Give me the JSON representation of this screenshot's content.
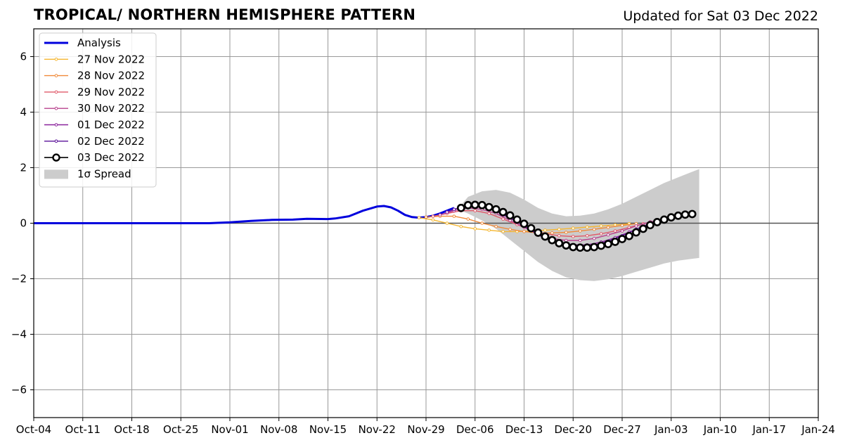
{
  "title": "TROPICAL/ NORTHERN HEMISPHERE PATTERN",
  "updated": "Updated for Sat 03 Dec 2022",
  "colors": {
    "analysis": "#0000dd",
    "spread": "#cccccc",
    "grid": "#999999",
    "zero": "#555555",
    "forecasts": [
      "#f5b731",
      "#f08a3a",
      "#e05a6a",
      "#b8428e",
      "#8a229c",
      "#5a1098",
      "#000000"
    ]
  },
  "chart_data": {
    "type": "line",
    "title": "TROPICAL/ NORTHERN HEMISPHERE PATTERN",
    "xlabel": "",
    "ylabel": "",
    "x_unit": "date",
    "xlim": [
      "2022-10-04",
      "2023-01-24"
    ],
    "ylim": [
      -7,
      7
    ],
    "grid": true,
    "legend_position": "top-left",
    "x_ticks": [
      "Oct-04",
      "Oct-11",
      "Oct-18",
      "Oct-25",
      "Nov-01",
      "Nov-08",
      "Nov-15",
      "Nov-22",
      "Nov-29",
      "Dec-06",
      "Dec-13",
      "Dec-20",
      "Dec-27",
      "Jan-03",
      "Jan-10",
      "Jan-17",
      "Jan-24"
    ],
    "x_tick_dates": [
      "2022-10-04",
      "2022-10-11",
      "2022-10-18",
      "2022-10-25",
      "2022-11-01",
      "2022-11-08",
      "2022-11-15",
      "2022-11-22",
      "2022-11-29",
      "2022-12-06",
      "2022-12-13",
      "2022-12-20",
      "2022-12-27",
      "2023-01-03",
      "2023-01-10",
      "2023-01-17",
      "2023-01-24"
    ],
    "y_ticks": [
      6,
      4,
      2,
      0,
      -2,
      -4,
      -6
    ],
    "y_tick_labels": [
      "6",
      "4",
      "2",
      "0",
      "−2",
      "−4",
      "−6"
    ],
    "series": [
      {
        "name": "Analysis",
        "style": "analysis",
        "points": [
          [
            "2022-10-04",
            0.0
          ],
          [
            "2022-10-11",
            0.0
          ],
          [
            "2022-10-18",
            0.0
          ],
          [
            "2022-10-25",
            0.0
          ],
          [
            "2022-10-29",
            0.0
          ],
          [
            "2022-11-01",
            0.03
          ],
          [
            "2022-11-04",
            0.08
          ],
          [
            "2022-11-07",
            0.12
          ],
          [
            "2022-11-10",
            0.13
          ],
          [
            "2022-11-12",
            0.16
          ],
          [
            "2022-11-15",
            0.15
          ],
          [
            "2022-11-16",
            0.17
          ],
          [
            "2022-11-18",
            0.25
          ],
          [
            "2022-11-20",
            0.45
          ],
          [
            "2022-11-22",
            0.6
          ],
          [
            "2022-11-23",
            0.62
          ],
          [
            "2022-11-24",
            0.57
          ],
          [
            "2022-11-25",
            0.45
          ],
          [
            "2022-11-26",
            0.3
          ],
          [
            "2022-11-27",
            0.22
          ],
          [
            "2022-11-28",
            0.2
          ],
          [
            "2022-11-29",
            0.22
          ],
          [
            "2022-11-30",
            0.27
          ],
          [
            "2022-12-01",
            0.35
          ],
          [
            "2022-12-02",
            0.45
          ],
          [
            "2022-12-03",
            0.55
          ]
        ]
      },
      {
        "name": "27 Nov 2022",
        "style": "small",
        "points": [
          [
            "2022-11-28",
            0.2
          ],
          [
            "2022-11-30",
            0.12
          ],
          [
            "2022-12-02",
            0.0
          ],
          [
            "2022-12-04",
            -0.12
          ],
          [
            "2022-12-06",
            -0.2
          ],
          [
            "2022-12-08",
            -0.25
          ],
          [
            "2022-12-10",
            -0.3
          ],
          [
            "2022-12-12",
            -0.3
          ],
          [
            "2022-12-14",
            -0.28
          ],
          [
            "2022-12-16",
            -0.25
          ],
          [
            "2022-12-18",
            -0.22
          ],
          [
            "2022-12-20",
            -0.18
          ],
          [
            "2022-12-22",
            -0.14
          ],
          [
            "2022-12-24",
            -0.1
          ],
          [
            "2022-12-26",
            -0.06
          ],
          [
            "2022-12-28",
            -0.02
          ]
        ]
      },
      {
        "name": "28 Nov 2022",
        "style": "small",
        "points": [
          [
            "2022-11-29",
            0.22
          ],
          [
            "2022-12-01",
            0.25
          ],
          [
            "2022-12-03",
            0.25
          ],
          [
            "2022-12-05",
            0.15
          ],
          [
            "2022-12-07",
            0.0
          ],
          [
            "2022-12-09",
            -0.12
          ],
          [
            "2022-12-11",
            -0.22
          ],
          [
            "2022-12-13",
            -0.3
          ],
          [
            "2022-12-15",
            -0.35
          ],
          [
            "2022-12-17",
            -0.35
          ],
          [
            "2022-12-19",
            -0.33
          ],
          [
            "2022-12-21",
            -0.28
          ],
          [
            "2022-12-23",
            -0.22
          ],
          [
            "2022-12-25",
            -0.15
          ],
          [
            "2022-12-27",
            -0.08
          ],
          [
            "2022-12-29",
            -0.02
          ]
        ]
      },
      {
        "name": "29 Nov 2022",
        "style": "small",
        "points": [
          [
            "2022-11-30",
            0.25
          ],
          [
            "2022-12-02",
            0.35
          ],
          [
            "2022-12-04",
            0.45
          ],
          [
            "2022-12-06",
            0.45
          ],
          [
            "2022-12-08",
            0.35
          ],
          [
            "2022-12-10",
            0.15
          ],
          [
            "2022-12-12",
            -0.05
          ],
          [
            "2022-12-14",
            -0.25
          ],
          [
            "2022-12-16",
            -0.38
          ],
          [
            "2022-12-18",
            -0.45
          ],
          [
            "2022-12-20",
            -0.48
          ],
          [
            "2022-12-22",
            -0.45
          ],
          [
            "2022-12-24",
            -0.38
          ],
          [
            "2022-12-26",
            -0.28
          ],
          [
            "2022-12-28",
            -0.15
          ],
          [
            "2022-12-30",
            -0.02
          ],
          [
            "2023-01-01",
            0.08
          ]
        ]
      },
      {
        "name": "30 Nov 2022",
        "style": "small",
        "points": [
          [
            "2022-12-01",
            0.3
          ],
          [
            "2022-12-03",
            0.45
          ],
          [
            "2022-12-05",
            0.55
          ],
          [
            "2022-12-07",
            0.5
          ],
          [
            "2022-12-09",
            0.35
          ],
          [
            "2022-12-11",
            0.1
          ],
          [
            "2022-12-13",
            -0.15
          ],
          [
            "2022-12-15",
            -0.38
          ],
          [
            "2022-12-17",
            -0.55
          ],
          [
            "2022-12-19",
            -0.62
          ],
          [
            "2022-12-21",
            -0.62
          ],
          [
            "2022-12-23",
            -0.55
          ],
          [
            "2022-12-25",
            -0.42
          ],
          [
            "2022-12-27",
            -0.28
          ],
          [
            "2022-12-29",
            -0.1
          ],
          [
            "2022-12-31",
            0.05
          ],
          [
            "2023-01-02",
            0.15
          ]
        ]
      },
      {
        "name": "01 Dec 2022",
        "style": "small",
        "points": [
          [
            "2022-12-02",
            0.4
          ],
          [
            "2022-12-04",
            0.58
          ],
          [
            "2022-12-06",
            0.65
          ],
          [
            "2022-12-08",
            0.55
          ],
          [
            "2022-12-10",
            0.3
          ],
          [
            "2022-12-12",
            0.05
          ],
          [
            "2022-12-14",
            -0.25
          ],
          [
            "2022-12-16",
            -0.5
          ],
          [
            "2022-12-18",
            -0.68
          ],
          [
            "2022-12-20",
            -0.78
          ],
          [
            "2022-12-22",
            -0.78
          ],
          [
            "2022-12-24",
            -0.68
          ],
          [
            "2022-12-26",
            -0.52
          ],
          [
            "2022-12-28",
            -0.32
          ],
          [
            "2022-12-30",
            -0.12
          ],
          [
            "2023-01-01",
            0.05
          ],
          [
            "2023-01-03",
            0.2
          ],
          [
            "2023-01-05",
            0.32
          ]
        ]
      },
      {
        "name": "02 Dec 2022",
        "style": "small",
        "points": [
          [
            "2022-12-03",
            0.5
          ],
          [
            "2022-12-05",
            0.65
          ],
          [
            "2022-12-07",
            0.62
          ],
          [
            "2022-12-09",
            0.45
          ],
          [
            "2022-12-11",
            0.2
          ],
          [
            "2022-12-13",
            -0.1
          ],
          [
            "2022-12-15",
            -0.42
          ],
          [
            "2022-12-17",
            -0.65
          ],
          [
            "2022-12-19",
            -0.8
          ],
          [
            "2022-12-21",
            -0.85
          ],
          [
            "2022-12-23",
            -0.8
          ],
          [
            "2022-12-25",
            -0.65
          ],
          [
            "2022-12-27",
            -0.45
          ],
          [
            "2022-12-29",
            -0.22
          ],
          [
            "2022-12-31",
            0.0
          ],
          [
            "2023-01-02",
            0.18
          ],
          [
            "2023-01-04",
            0.3
          ],
          [
            "2023-01-06",
            0.35
          ]
        ]
      },
      {
        "name": "03 Dec 2022",
        "style": "big",
        "points": [
          [
            "2022-12-04",
            0.55
          ],
          [
            "2022-12-05",
            0.65
          ],
          [
            "2022-12-06",
            0.66
          ],
          [
            "2022-12-07",
            0.65
          ],
          [
            "2022-12-08",
            0.58
          ],
          [
            "2022-12-09",
            0.5
          ],
          [
            "2022-12-10",
            0.4
          ],
          [
            "2022-12-11",
            0.28
          ],
          [
            "2022-12-12",
            0.13
          ],
          [
            "2022-12-13",
            -0.02
          ],
          [
            "2022-12-14",
            -0.18
          ],
          [
            "2022-12-15",
            -0.34
          ],
          [
            "2022-12-16",
            -0.48
          ],
          [
            "2022-12-17",
            -0.61
          ],
          [
            "2022-12-18",
            -0.72
          ],
          [
            "2022-12-19",
            -0.8
          ],
          [
            "2022-12-20",
            -0.86
          ],
          [
            "2022-12-21",
            -0.88
          ],
          [
            "2022-12-22",
            -0.88
          ],
          [
            "2022-12-23",
            -0.86
          ],
          [
            "2022-12-24",
            -0.81
          ],
          [
            "2022-12-25",
            -0.75
          ],
          [
            "2022-12-26",
            -0.67
          ],
          [
            "2022-12-27",
            -0.57
          ],
          [
            "2022-12-28",
            -0.46
          ],
          [
            "2022-12-29",
            -0.33
          ],
          [
            "2022-12-30",
            -0.2
          ],
          [
            "2022-12-31",
            -0.07
          ],
          [
            "2023-01-01",
            0.04
          ],
          [
            "2023-01-02",
            0.13
          ],
          [
            "2023-01-03",
            0.21
          ],
          [
            "2023-01-04",
            0.27
          ],
          [
            "2023-01-05",
            0.31
          ],
          [
            "2023-01-06",
            0.33
          ]
        ]
      }
    ],
    "spread": {
      "name": "1σ Spread",
      "upper": [
        [
          "2022-12-04",
          0.65
        ],
        [
          "2022-12-05",
          0.95
        ],
        [
          "2022-12-07",
          1.15
        ],
        [
          "2022-12-09",
          1.2
        ],
        [
          "2022-12-11",
          1.1
        ],
        [
          "2022-12-13",
          0.85
        ],
        [
          "2022-12-15",
          0.55
        ],
        [
          "2022-12-17",
          0.35
        ],
        [
          "2022-12-19",
          0.25
        ],
        [
          "2022-12-21",
          0.27
        ],
        [
          "2022-12-23",
          0.35
        ],
        [
          "2022-12-25",
          0.5
        ],
        [
          "2022-12-27",
          0.7
        ],
        [
          "2022-12-29",
          0.95
        ],
        [
          "2022-12-31",
          1.2
        ],
        [
          "2023-01-02",
          1.45
        ],
        [
          "2023-01-04",
          1.65
        ],
        [
          "2023-01-06",
          1.85
        ],
        [
          "2023-01-07",
          1.95
        ]
      ],
      "lower": [
        [
          "2022-12-04",
          0.45
        ],
        [
          "2022-12-05",
          0.35
        ],
        [
          "2022-12-07",
          0.1
        ],
        [
          "2022-12-09",
          -0.2
        ],
        [
          "2022-12-11",
          -0.6
        ],
        [
          "2022-12-13",
          -1.0
        ],
        [
          "2022-12-15",
          -1.4
        ],
        [
          "2022-12-17",
          -1.72
        ],
        [
          "2022-12-19",
          -1.95
        ],
        [
          "2022-12-21",
          -2.05
        ],
        [
          "2022-12-23",
          -2.08
        ],
        [
          "2022-12-25",
          -2.02
        ],
        [
          "2022-12-27",
          -1.9
        ],
        [
          "2022-12-29",
          -1.75
        ],
        [
          "2022-12-31",
          -1.6
        ],
        [
          "2023-01-02",
          -1.45
        ],
        [
          "2023-01-04",
          -1.35
        ],
        [
          "2023-01-06",
          -1.28
        ],
        [
          "2023-01-07",
          -1.25
        ]
      ]
    }
  }
}
